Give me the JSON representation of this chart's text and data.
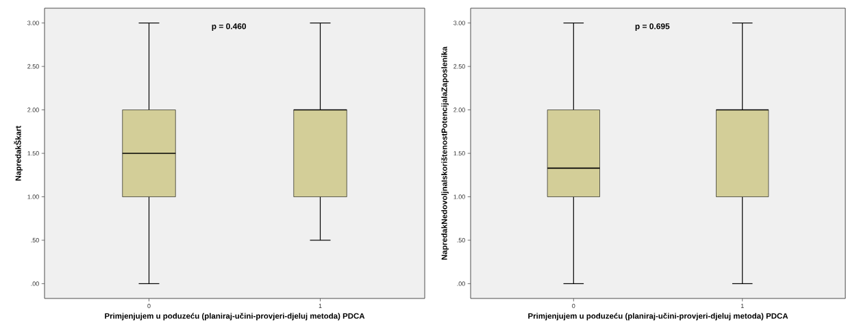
{
  "chart_data": [
    {
      "type": "box",
      "categories": [
        "0",
        "1"
      ],
      "xlabel": "Primjenjujem u poduzeću  (planiraj-učini-provjeri-djeluj metoda) PDCA",
      "ylabel": "NapredakŠkart",
      "boxes": [
        {
          "low": 0,
          "q1": 1,
          "median": 1.5,
          "q3": 2,
          "high": 3
        },
        {
          "low": 0.5,
          "q1": 1,
          "median": 2,
          "q3": 2,
          "high": 3
        }
      ],
      "colors": [
        "#d3ce98",
        "#d3ce98"
      ],
      "ylim": [
        -0.17,
        3.17
      ],
      "yticks": [
        {
          "value": 0,
          "label": ".00"
        },
        {
          "value": 0.5,
          "label": ".50"
        },
        {
          "value": 1,
          "label": "1.00"
        },
        {
          "value": 1.5,
          "label": "1.50"
        },
        {
          "value": 2,
          "label": "2.00"
        },
        {
          "value": 2.5,
          "label": "2.50"
        },
        {
          "value": 3,
          "label": "3.00"
        }
      ],
      "annotations": [
        "p = 0.460"
      ]
    },
    {
      "type": "box",
      "categories": [
        "0",
        "1"
      ],
      "xlabel": "Primjenjujem u poduzeću  (planiraj-učini-provjeri-djeluj metoda) PDCA",
      "ylabel": "NapredakNedovoljnaIskorištenostPotencijalaZaposlenika",
      "boxes": [
        {
          "low": 0,
          "q1": 1,
          "median": 1.33,
          "q3": 2,
          "high": 3
        },
        {
          "low": 0,
          "q1": 1,
          "median": 2,
          "q3": 2,
          "high": 3
        }
      ],
      "colors": [
        "#d3ce98",
        "#d3ce98"
      ],
      "ylim": [
        -0.17,
        3.17
      ],
      "yticks": [
        {
          "value": 0,
          "label": ".00"
        },
        {
          "value": 0.5,
          "label": ".50"
        },
        {
          "value": 1,
          "label": "1.00"
        },
        {
          "value": 1.5,
          "label": "1.50"
        },
        {
          "value": 2,
          "label": "2.00"
        },
        {
          "value": 2.5,
          "label": "2.50"
        },
        {
          "value": 3,
          "label": "3.00"
        }
      ],
      "annotations": [
        "p = 0.695"
      ]
    }
  ]
}
